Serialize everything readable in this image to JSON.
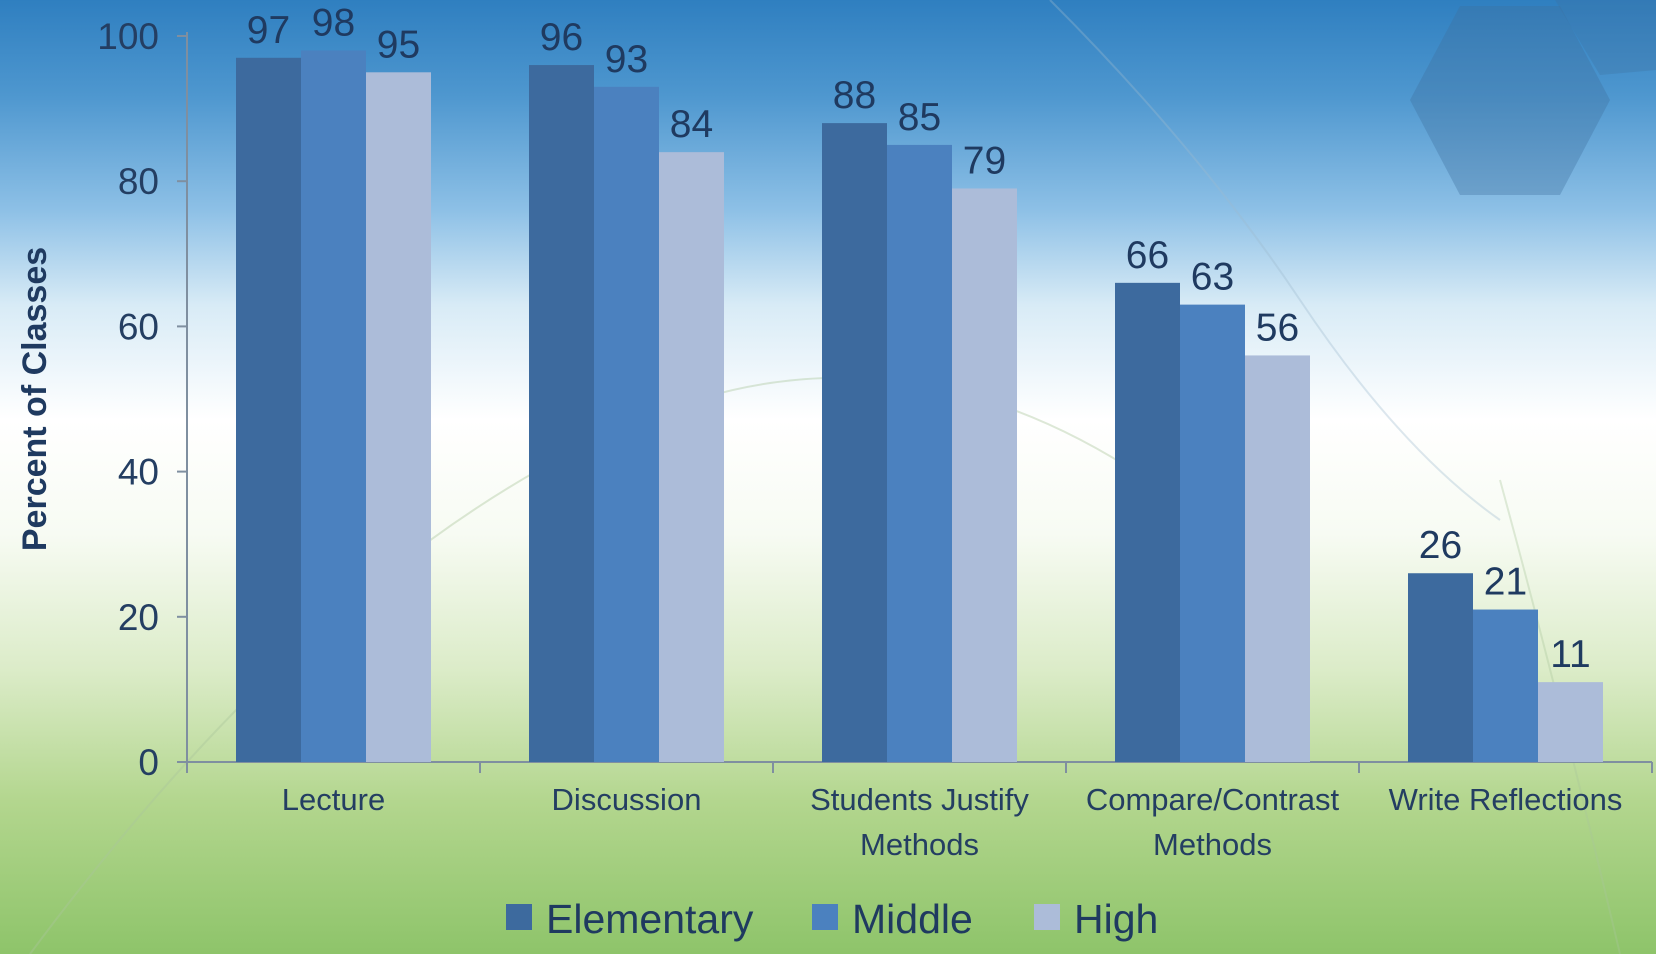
{
  "chart_data": {
    "type": "bar",
    "title": "",
    "xlabel": "",
    "ylabel": "Percent of Classes",
    "ylim": [
      0,
      100
    ],
    "yticks": [
      0,
      20,
      40,
      60,
      80,
      100
    ],
    "grid": false,
    "legend_position": "bottom",
    "categories": [
      [
        "Lecture"
      ],
      [
        "Discussion"
      ],
      [
        "Students Justify",
        "Methods"
      ],
      [
        "Compare/Contrast",
        "Methods"
      ],
      [
        "Write Reflections"
      ]
    ],
    "series": [
      {
        "name": "Elementary",
        "color": "#3d6a9e",
        "values": [
          97,
          96,
          88,
          66,
          26
        ]
      },
      {
        "name": "Middle",
        "color": "#4b81bf",
        "values": [
          98,
          93,
          85,
          63,
          21
        ]
      },
      {
        "name": "High",
        "color": "#acbcd9",
        "values": [
          95,
          84,
          79,
          56,
          11
        ]
      }
    ]
  }
}
